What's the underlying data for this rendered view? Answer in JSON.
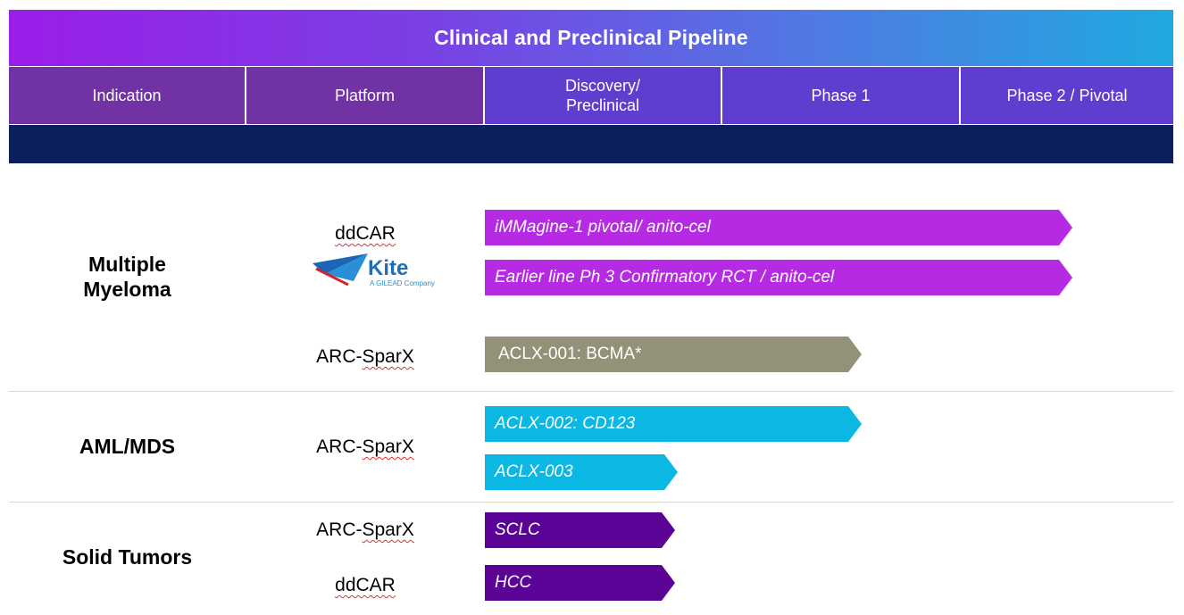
{
  "title": "Clinical and Preclinical Pipeline",
  "columns": [
    {
      "label": "Indication",
      "color": "#7132a4"
    },
    {
      "label": "Platform",
      "color": "#7132a4"
    },
    {
      "label": "Discovery/\nPreclinical",
      "color": "#5f3ecf"
    },
    {
      "label": "Phase 1",
      "color": "#5f3ecf"
    },
    {
      "label": "Phase 2 / Pivotal",
      "color": "#5f3ecf"
    }
  ],
  "indications": {
    "multiple_myeloma": "Multiple\nMyeloma",
    "aml_mds": "AML/MDS",
    "solid_tumors": "Solid Tumors"
  },
  "platforms": {
    "mm_ddcar": "ddCAR",
    "mm_arc_sparx": "ARC-SparX",
    "aml_arc_sparx": "ARC-SparX",
    "st_arc_sparx": "ARC-SparX",
    "st_ddcar": "ddCAR"
  },
  "kite_logo": {
    "brand": "Kite",
    "tagline": "A GILEAD Company",
    "colors": {
      "text": "#1f6fb8",
      "tagline": "#2a8fd6",
      "mark_red": "#d2232a",
      "mark_blue": "#1a65b5"
    }
  },
  "programs": [
    {
      "label": "iMMagine-1 pivotal/ anito-cel",
      "progress": 0.875,
      "color": "#b72ae4"
    },
    {
      "label": "Earlier line Ph 3 Confirmatory RCT / anito-cel",
      "progress": 0.875,
      "color": "#b72ae4"
    },
    {
      "label": "ACLX-001: BCMA*",
      "progress": 0.5,
      "color": "#949179"
    },
    {
      "label": "ACLX-002: CD123",
      "progress": 0.5,
      "color": "#0bb8e4"
    },
    {
      "label": "ACLX-003",
      "progress": 0.25,
      "color": "#0bb8e4"
    },
    {
      "label": "SCLC",
      "progress": 0.25,
      "color": "#5a0396"
    },
    {
      "label": "HCC",
      "progress": 0.25,
      "color": "#5a0396"
    }
  ],
  "progress_scale_note": "progress = fraction of the Discovery → Phase 2/Pivotal span reached by each bar"
}
